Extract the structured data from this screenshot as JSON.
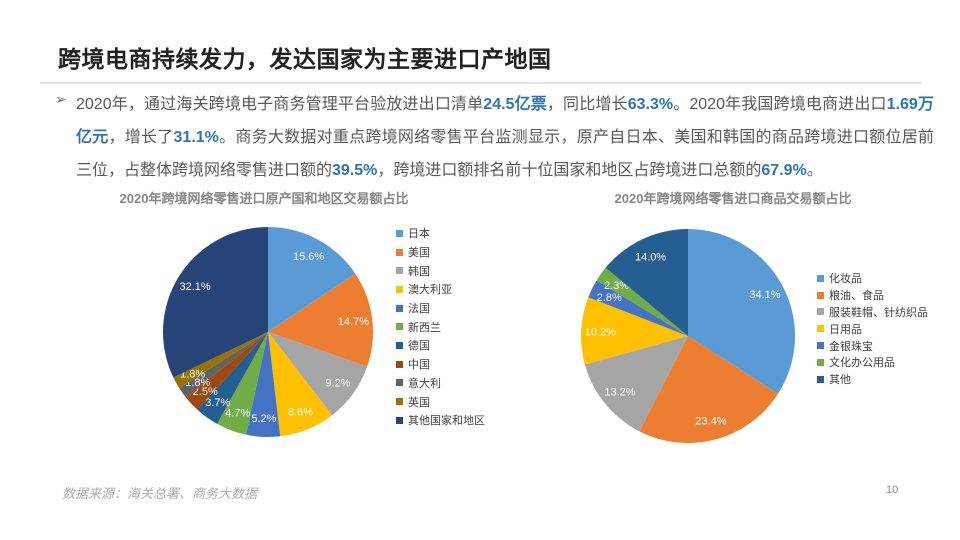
{
  "slide": {
    "title": "跨境电商持续发力，发达国家为主要进口产地国",
    "bullet_char": "➢",
    "paragraph_segments": [
      {
        "text": "2020年，通过海关跨境电子商务管理平台验放进出口清单",
        "highlight": false
      },
      {
        "text": "24.5亿票",
        "highlight": true
      },
      {
        "text": "，同比增长",
        "highlight": false
      },
      {
        "text": "63.3%",
        "highlight": true
      },
      {
        "text": "。2020年我国跨境电商进出口",
        "highlight": false
      },
      {
        "text": "1.69万亿元",
        "highlight": true
      },
      {
        "text": "，增长了",
        "highlight": false
      },
      {
        "text": "31.1%",
        "highlight": true
      },
      {
        "text": "。商务大数据对重点跨境网络零售平台监测显示，原产自日本、美国和韩国的商品跨境进口额位居前三位，占整体跨境网络零售进口额的",
        "highlight": false
      },
      {
        "text": "39.5%",
        "highlight": true
      },
      {
        "text": "，跨境进口额排名前十位国家和地区占跨境进口总额的",
        "highlight": false
      },
      {
        "text": "67.9%",
        "highlight": true
      },
      {
        "text": "。",
        "highlight": false
      }
    ],
    "footer_source": "数据来源：海关总署、商务大数据",
    "page_number": "10",
    "colors": {
      "title_text": "#212121",
      "body_text": "#595959",
      "highlight": "#2E75B6",
      "chart_title": "#878787",
      "footer_text": "#ababab"
    }
  },
  "chart_data": [
    {
      "type": "pie",
      "title": "2020年跨境网络零售进口原产国和地区交易额占比",
      "categories": [
        "日本",
        "美国",
        "韩国",
        "澳大利亚",
        "法国",
        "新西兰",
        "德国",
        "中国",
        "意大利",
        "英国",
        "其他国家和地区"
      ],
      "values": [
        15.6,
        14.7,
        9.2,
        8.6,
        5.2,
        4.7,
        3.7,
        2.5,
        1.8,
        1.8,
        32.1
      ],
      "unit": "%",
      "colors": [
        "#5B9BD5",
        "#ED7D31",
        "#A5A5A5",
        "#FFC000",
        "#4472C4",
        "#70AD47",
        "#255E91",
        "#9E480E",
        "#636363",
        "#997300",
        "#264478"
      ],
      "legend_position": "right",
      "start_angle_deg": 0,
      "direction": "clockwise",
      "labels": "inside, one decimal + %",
      "label_color": "#FFFFFF"
    },
    {
      "type": "pie",
      "title": "2020年跨境网络零售进口商品交易额占比",
      "categories": [
        "化妆品",
        "粮油、食品",
        "服装鞋帽、针纺织品",
        "日用品",
        "金银珠宝",
        "文化办公用品",
        "其他"
      ],
      "values": [
        34.1,
        23.4,
        13.2,
        10.2,
        2.8,
        2.3,
        14.0
      ],
      "unit": "%",
      "colors": [
        "#5B9BD5",
        "#ED7D31",
        "#A5A5A5",
        "#FFC000",
        "#4472C4",
        "#70AD47",
        "#255E91"
      ],
      "legend_position": "right",
      "start_angle_deg": 0,
      "direction": "clockwise",
      "labels": "inside, one decimal + %",
      "label_color": "#FFFFFF"
    }
  ]
}
